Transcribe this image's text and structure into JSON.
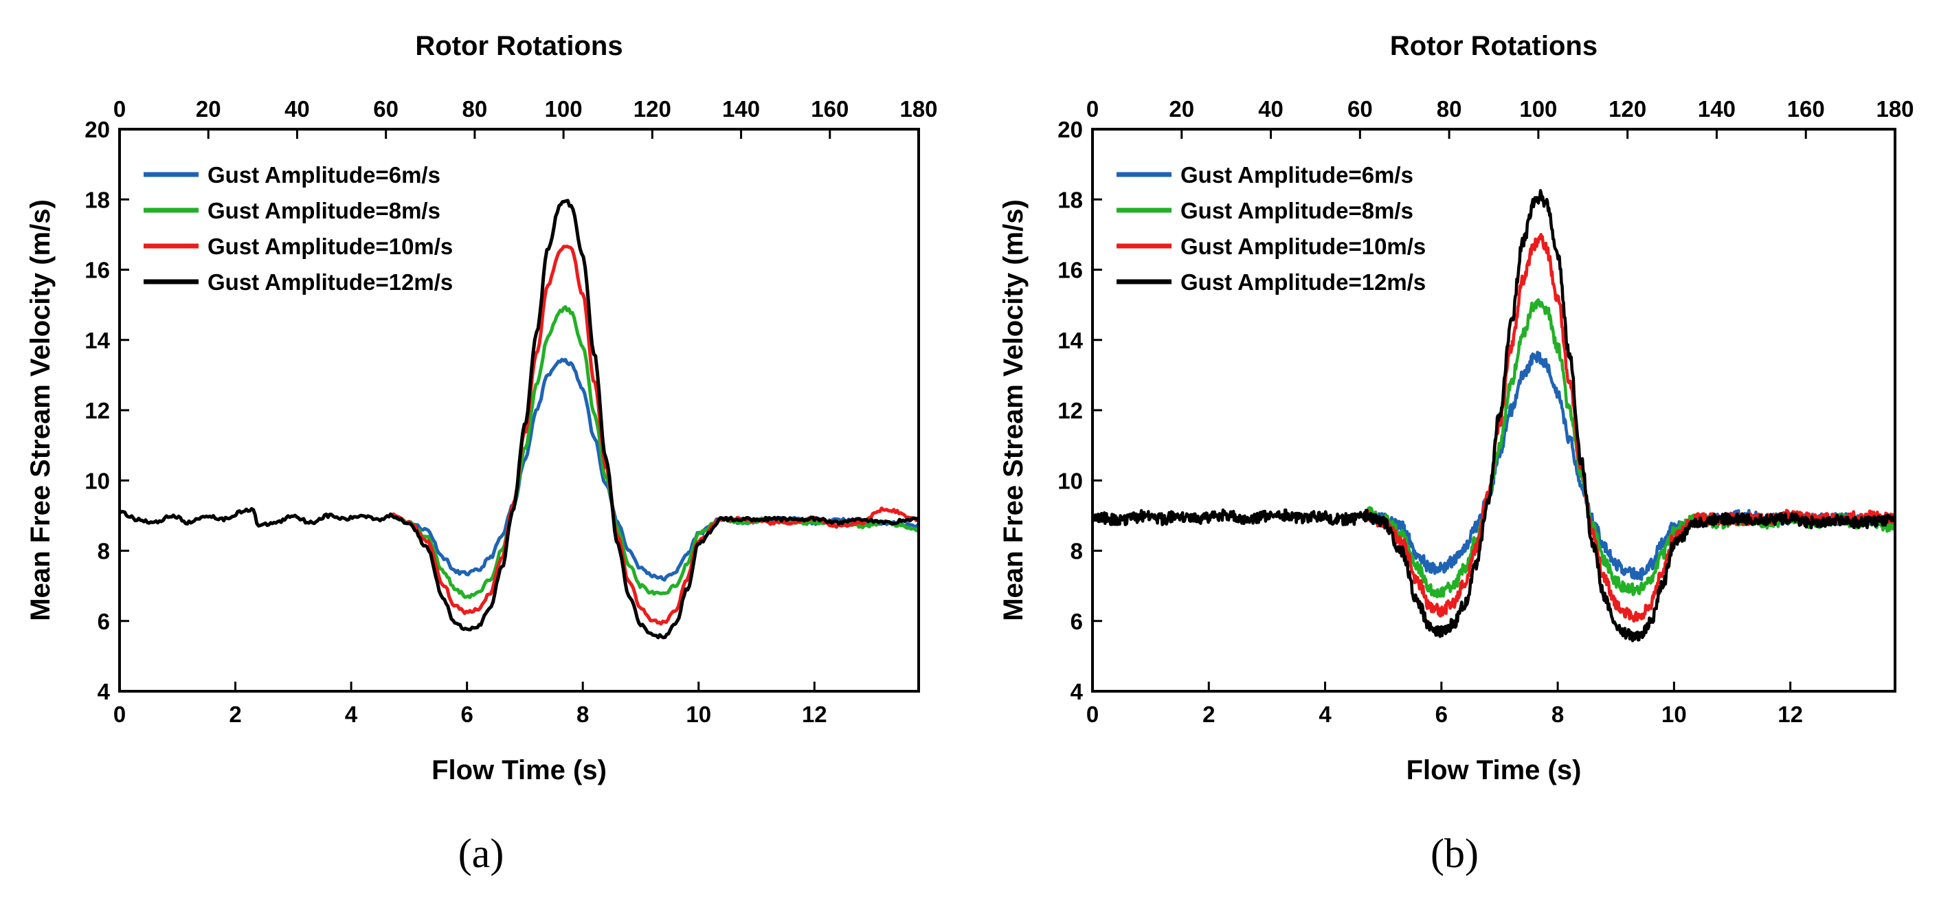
{
  "chart_data": [
    {
      "type": "line",
      "panel_label": "(a)",
      "title": "",
      "xlabel": "Flow Time (s)",
      "x2label": "Rotor Rotations",
      "ylabel": "Mean Free Stream Velocity (m/s)",
      "xlim": [
        0,
        13.8
      ],
      "ylim": [
        4,
        20
      ],
      "x2lim": [
        0,
        180
      ],
      "xticks": [
        "0",
        "2",
        "4",
        "6",
        "8",
        "10",
        "12"
      ],
      "yticks": [
        "4",
        "6",
        "8",
        "10",
        "12",
        "14",
        "16",
        "18",
        "20"
      ],
      "x2ticks": [
        "0",
        "20",
        "40",
        "60",
        "80",
        "100",
        "120",
        "140",
        "160",
        "180"
      ],
      "legend_position": "top-left",
      "noise": "low",
      "series": [
        {
          "name": "Gust Amplitude=6m/s",
          "color": "#1f63b5",
          "x": [
            4.7,
            5.0,
            5.3,
            5.6,
            5.8,
            6.0,
            6.2,
            6.4,
            6.6,
            6.8,
            7.0,
            7.2,
            7.4,
            7.6,
            7.7,
            7.8,
            8.0,
            8.2,
            8.4,
            8.6,
            8.8,
            9.0,
            9.2,
            9.4,
            9.6,
            9.8,
            10.0,
            10.4,
            10.8,
            11.2,
            11.6,
            12.0,
            12.4,
            12.8,
            13.2,
            13.8
          ],
          "y": [
            9.0,
            8.8,
            8.6,
            7.8,
            7.4,
            7.35,
            7.45,
            7.8,
            8.4,
            9.3,
            10.6,
            12.0,
            13.0,
            13.4,
            13.4,
            13.3,
            12.6,
            11.2,
            9.9,
            8.8,
            8.0,
            7.5,
            7.3,
            7.2,
            7.4,
            7.9,
            8.5,
            8.9,
            8.8,
            8.9,
            8.9,
            8.8,
            8.9,
            8.8,
            8.8,
            8.7
          ]
        },
        {
          "name": "Gust Amplitude=8m/s",
          "color": "#22b026",
          "x": [
            4.7,
            5.0,
            5.3,
            5.6,
            5.8,
            6.0,
            6.2,
            6.4,
            6.6,
            6.8,
            7.0,
            7.2,
            7.4,
            7.6,
            7.7,
            7.8,
            8.0,
            8.2,
            8.4,
            8.6,
            8.8,
            9.0,
            9.2,
            9.4,
            9.6,
            9.8,
            10.0,
            10.4,
            10.8,
            11.2,
            11.6,
            12.0,
            12.4,
            12.8,
            13.2,
            13.8
          ],
          "y": [
            9.0,
            8.8,
            8.4,
            7.4,
            6.9,
            6.7,
            6.8,
            7.2,
            8.0,
            9.2,
            10.9,
            12.7,
            14.1,
            14.8,
            14.9,
            14.8,
            13.8,
            11.9,
            10.1,
            8.6,
            7.6,
            7.0,
            6.8,
            6.75,
            7.0,
            7.6,
            8.5,
            8.9,
            8.8,
            8.9,
            8.8,
            8.8,
            8.8,
            8.7,
            8.8,
            8.6
          ]
        },
        {
          "name": "Gust Amplitude=10m/s",
          "color": "#ec1c1c",
          "x": [
            4.7,
            5.0,
            5.3,
            5.6,
            5.8,
            6.0,
            6.2,
            6.4,
            6.6,
            6.8,
            7.0,
            7.2,
            7.4,
            7.6,
            7.7,
            7.8,
            8.0,
            8.2,
            8.4,
            8.6,
            8.8,
            9.0,
            9.2,
            9.4,
            9.6,
            9.8,
            10.0,
            10.4,
            10.8,
            11.2,
            11.6,
            12.0,
            12.4,
            12.8,
            13.2,
            13.8
          ],
          "y": [
            9.0,
            8.8,
            8.3,
            7.0,
            6.4,
            6.25,
            6.35,
            6.8,
            7.8,
            9.3,
            11.4,
            13.6,
            15.6,
            16.5,
            16.7,
            16.6,
            15.3,
            12.8,
            10.4,
            8.4,
            7.1,
            6.4,
            6.0,
            5.95,
            6.3,
            7.2,
            8.3,
            8.9,
            8.9,
            8.8,
            8.8,
            8.9,
            8.7,
            8.8,
            9.2,
            8.9
          ]
        },
        {
          "name": "Gust Amplitude=12m/s",
          "color": "#000000",
          "x": [
            0.0,
            0.3,
            0.6,
            0.9,
            1.2,
            1.5,
            1.8,
            2.1,
            2.3,
            2.4,
            2.7,
            3.0,
            3.3,
            3.6,
            3.9,
            4.2,
            4.5,
            4.7,
            5.0,
            5.3,
            5.6,
            5.8,
            6.0,
            6.2,
            6.4,
            6.6,
            6.8,
            7.0,
            7.2,
            7.4,
            7.6,
            7.7,
            7.8,
            8.0,
            8.2,
            8.4,
            8.6,
            8.8,
            9.0,
            9.2,
            9.4,
            9.6,
            9.8,
            10.0,
            10.4,
            10.8,
            11.2,
            11.6,
            12.0,
            12.4,
            12.8,
            13.2,
            13.8
          ],
          "y": [
            9.1,
            8.9,
            8.8,
            9.0,
            8.8,
            9.0,
            8.9,
            9.1,
            9.2,
            8.7,
            8.8,
            9.0,
            8.8,
            9.0,
            8.9,
            9.0,
            8.9,
            9.0,
            8.8,
            8.1,
            6.6,
            5.9,
            5.75,
            5.85,
            6.4,
            7.5,
            9.2,
            11.6,
            14.2,
            16.6,
            17.8,
            18.0,
            17.8,
            16.4,
            13.6,
            10.6,
            8.2,
            6.7,
            5.9,
            5.6,
            5.55,
            5.9,
            6.9,
            8.2,
            8.9,
            8.9,
            8.9,
            8.9,
            8.9,
            8.8,
            8.9,
            8.8,
            8.9
          ]
        }
      ]
    },
    {
      "type": "line",
      "panel_label": "(b)",
      "title": "",
      "xlabel": "Flow Time (s)",
      "x2label": "Rotor Rotations",
      "ylabel": "Mean Free Stream Velocity (m/s)",
      "xlim": [
        0,
        13.8
      ],
      "ylim": [
        4,
        20
      ],
      "x2lim": [
        0,
        180
      ],
      "xticks": [
        "0",
        "2",
        "4",
        "6",
        "8",
        "10",
        "12"
      ],
      "yticks": [
        "4",
        "6",
        "8",
        "10",
        "12",
        "14",
        "16",
        "18",
        "20"
      ],
      "x2ticks": [
        "0",
        "20",
        "40",
        "60",
        "80",
        "100",
        "120",
        "140",
        "160",
        "180"
      ],
      "legend_position": "top-left",
      "noise": "high",
      "series": [
        {
          "name": "Gust Amplitude=6m/s",
          "color": "#1f63b5",
          "x": [
            4.7,
            5.0,
            5.3,
            5.6,
            5.8,
            6.0,
            6.2,
            6.4,
            6.6,
            6.8,
            7.0,
            7.2,
            7.4,
            7.6,
            7.7,
            7.8,
            8.0,
            8.2,
            8.4,
            8.6,
            8.8,
            9.0,
            9.2,
            9.4,
            9.6,
            9.8,
            10.0,
            10.4,
            10.8,
            11.2,
            11.6,
            12.0,
            12.4,
            12.8,
            13.2,
            13.8
          ],
          "y": [
            9.0,
            8.9,
            8.7,
            7.9,
            7.5,
            7.5,
            7.7,
            8.1,
            8.7,
            9.5,
            10.7,
            12.0,
            13.0,
            13.5,
            13.5,
            13.3,
            12.5,
            11.2,
            9.9,
            8.9,
            8.1,
            7.6,
            7.4,
            7.3,
            7.6,
            8.2,
            8.7,
            8.9,
            8.9,
            9.0,
            8.9,
            8.9,
            8.9,
            8.9,
            8.9,
            8.8
          ]
        },
        {
          "name": "Gust Amplitude=8m/s",
          "color": "#22b026",
          "x": [
            4.7,
            5.0,
            5.3,
            5.6,
            5.8,
            6.0,
            6.2,
            6.4,
            6.6,
            6.8,
            7.0,
            7.2,
            7.4,
            7.6,
            7.7,
            7.8,
            8.0,
            8.2,
            8.4,
            8.6,
            8.8,
            9.0,
            9.2,
            9.4,
            9.6,
            9.8,
            10.0,
            10.4,
            10.8,
            11.2,
            11.6,
            12.0,
            12.4,
            12.8,
            13.2,
            13.8
          ],
          "y": [
            9.1,
            8.9,
            8.5,
            7.5,
            6.9,
            6.8,
            7.0,
            7.5,
            8.3,
            9.5,
            11.0,
            12.8,
            14.2,
            15.0,
            15.1,
            14.9,
            13.8,
            12.0,
            10.2,
            8.7,
            7.7,
            7.1,
            6.9,
            6.9,
            7.2,
            7.9,
            8.6,
            8.9,
            8.8,
            8.9,
            8.8,
            8.9,
            8.8,
            8.9,
            8.8,
            8.7
          ]
        },
        {
          "name": "Gust Amplitude=10m/s",
          "color": "#ec1c1c",
          "x": [
            4.7,
            5.0,
            5.3,
            5.6,
            5.8,
            6.0,
            6.2,
            6.4,
            6.6,
            6.8,
            7.0,
            7.2,
            7.4,
            7.6,
            7.7,
            7.8,
            8.0,
            8.2,
            8.4,
            8.6,
            8.8,
            9.0,
            9.2,
            9.4,
            9.6,
            9.8,
            10.0,
            10.4,
            10.8,
            11.2,
            11.6,
            12.0,
            12.4,
            12.8,
            13.2,
            13.8
          ],
          "y": [
            9.0,
            8.8,
            8.3,
            7.1,
            6.4,
            6.3,
            6.5,
            7.1,
            8.1,
            9.6,
            11.6,
            13.8,
            15.7,
            16.7,
            16.9,
            16.6,
            15.2,
            12.8,
            10.4,
            8.5,
            7.2,
            6.5,
            6.2,
            6.1,
            6.5,
            7.4,
            8.4,
            8.9,
            8.9,
            8.9,
            8.9,
            9.0,
            8.9,
            8.9,
            9.0,
            8.9
          ]
        },
        {
          "name": "Gust Amplitude=12m/s",
          "color": "#000000",
          "x": [
            0.0,
            0.3,
            0.6,
            0.9,
            1.2,
            1.5,
            1.8,
            2.1,
            2.4,
            2.7,
            3.0,
            3.3,
            3.6,
            3.9,
            4.2,
            4.5,
            4.7,
            5.0,
            5.3,
            5.6,
            5.8,
            6.0,
            6.2,
            6.4,
            6.6,
            6.8,
            7.0,
            7.2,
            7.4,
            7.6,
            7.7,
            7.8,
            8.0,
            8.2,
            8.4,
            8.6,
            8.8,
            9.0,
            9.2,
            9.4,
            9.6,
            9.8,
            10.0,
            10.4,
            10.8,
            11.2,
            11.6,
            12.0,
            12.4,
            12.8,
            13.2,
            13.8
          ],
          "y": [
            9.0,
            8.9,
            8.9,
            9.0,
            8.9,
            9.0,
            8.9,
            9.0,
            9.0,
            8.9,
            9.0,
            9.0,
            8.9,
            9.0,
            8.9,
            8.9,
            9.0,
            8.8,
            8.0,
            6.5,
            5.8,
            5.7,
            5.9,
            6.5,
            7.6,
            9.4,
            11.9,
            14.5,
            16.8,
            17.9,
            18.1,
            17.9,
            16.4,
            13.6,
            10.6,
            8.2,
            6.7,
            5.9,
            5.6,
            5.55,
            6.0,
            7.0,
            8.2,
            8.8,
            8.9,
            8.9,
            8.9,
            8.9,
            8.8,
            8.9,
            8.8,
            8.9
          ]
        }
      ]
    }
  ]
}
